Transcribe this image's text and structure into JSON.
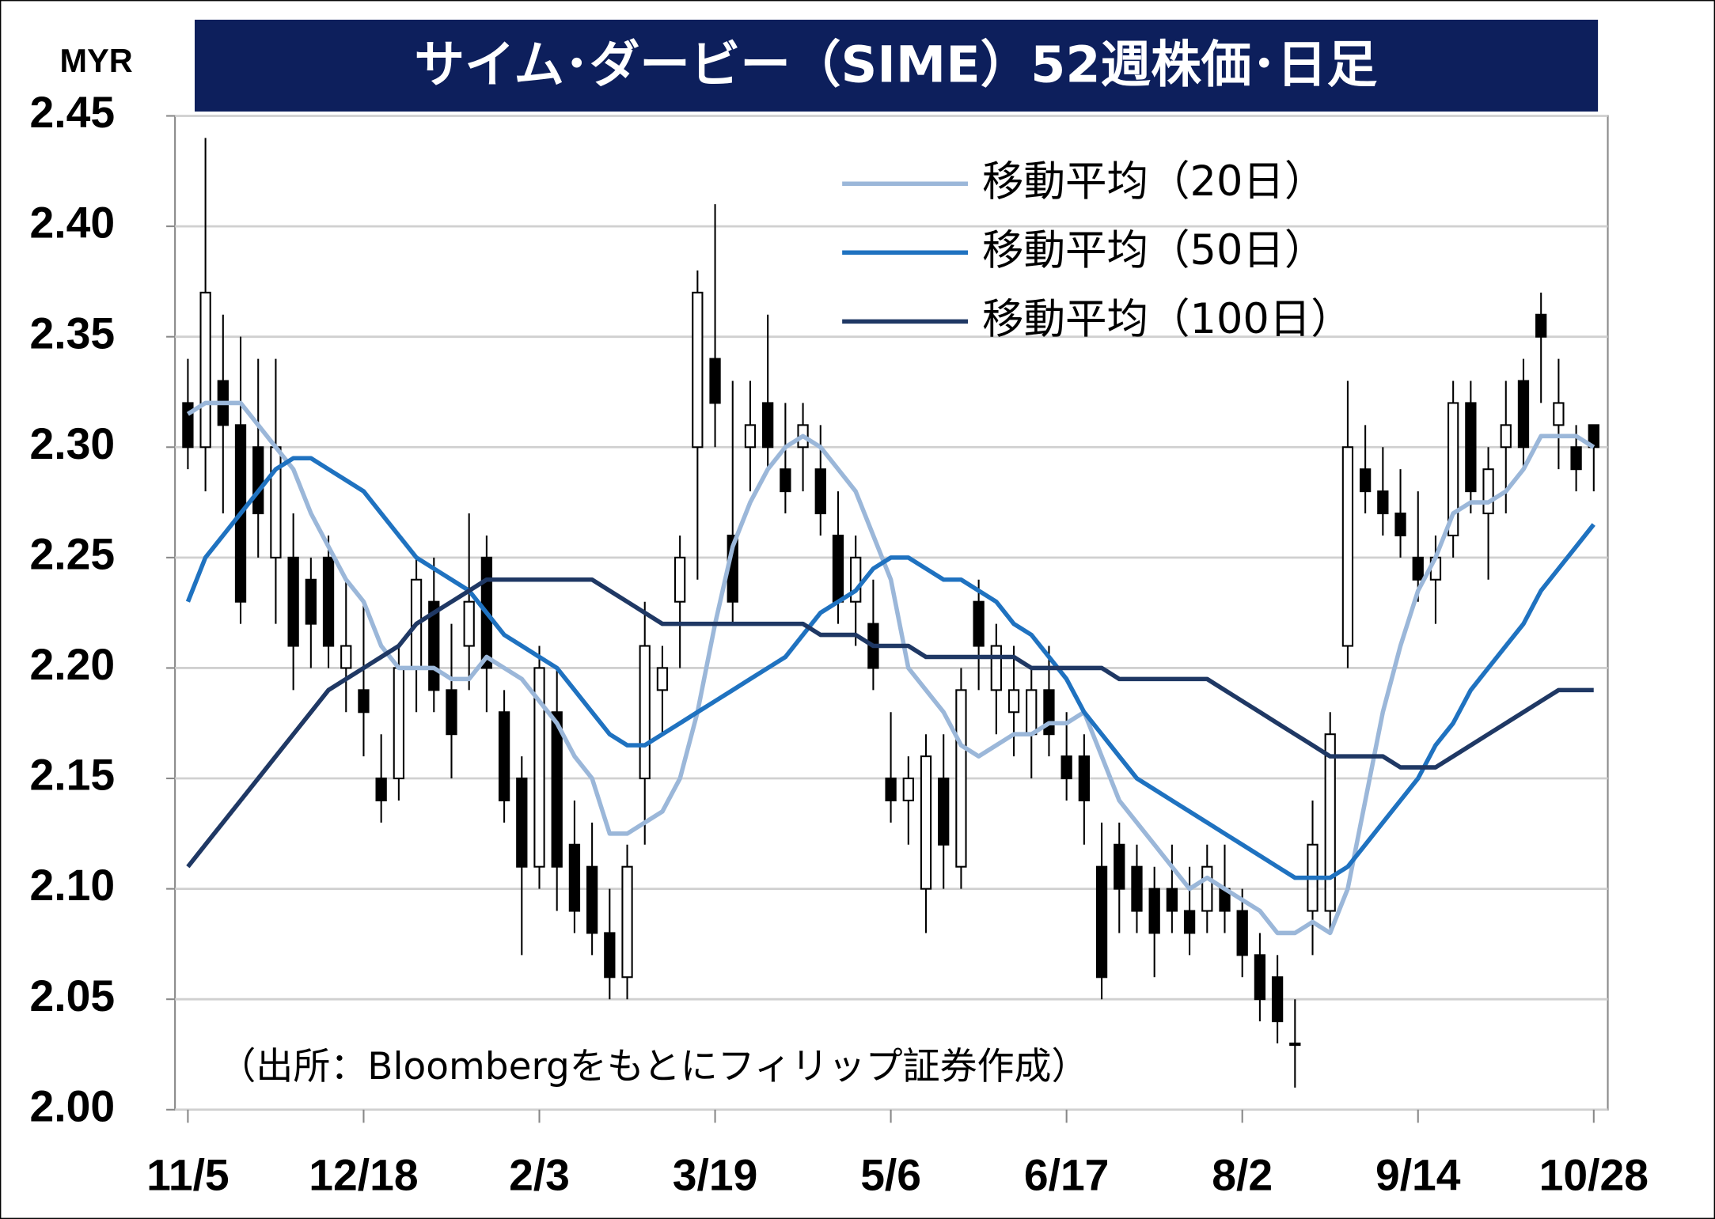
{
  "chart_data": {
    "type": "candlestick",
    "title": "サイム･ダービー（SIME）52週株価･日足",
    "y_unit": "MYR",
    "annotation": "（出所：Bloombergをもとにフィリップ証券作成）",
    "legend": "upper right",
    "grid": true,
    "up_color": "#ffffff",
    "down_color": "#000000",
    "xlim": [
      -2.2,
      242.4
    ],
    "xticks": [
      {
        "value": 0,
        "label": "11/5"
      },
      {
        "value": 30,
        "label": "12/18"
      },
      {
        "value": 60,
        "label": "2/3"
      },
      {
        "value": 90,
        "label": "3/19"
      },
      {
        "value": 120,
        "label": "5/6"
      },
      {
        "value": 150,
        "label": "6/17"
      },
      {
        "value": 180,
        "label": "8/2"
      },
      {
        "value": 210,
        "label": "9/14"
      },
      {
        "value": 240,
        "label": "10/28"
      }
    ],
    "ylim": [
      2,
      2.45
    ],
    "yticks": [
      {
        "value": 2,
        "label": "2.00"
      },
      2.05,
      {
        "value": 2.1,
        "label": "2.10"
      },
      2.15,
      {
        "value": 2.2,
        "label": "2.20"
      },
      2.25,
      {
        "value": 2.3,
        "label": "2.30"
      },
      2.35,
      {
        "value": 2.4,
        "label": "2.40"
      },
      2.45
    ],
    "x": [
      0,
      3,
      6,
      9,
      12,
      15,
      18,
      21,
      24,
      27,
      30,
      33,
      36,
      39,
      42,
      45,
      48,
      51,
      54,
      57,
      60,
      63,
      66,
      69,
      72,
      75,
      78,
      81,
      84,
      87,
      90,
      93,
      96,
      99,
      102,
      105,
      108,
      111,
      114,
      117,
      120,
      123,
      126,
      129,
      132,
      135,
      138,
      141,
      144,
      147,
      150,
      153,
      156,
      159,
      162,
      165,
      168,
      171,
      174,
      177,
      180,
      183,
      186,
      189,
      192,
      195,
      198,
      201,
      204,
      207,
      210,
      213,
      216,
      219,
      222,
      225,
      228,
      231,
      234,
      237,
      240
    ],
    "ohlc": [
      [
        2.32,
        2.34,
        2.29,
        2.3
      ],
      [
        2.3,
        2.44,
        2.28,
        2.37
      ],
      [
        2.33,
        2.36,
        2.27,
        2.31
      ],
      [
        2.31,
        2.35,
        2.22,
        2.23
      ],
      [
        2.3,
        2.34,
        2.25,
        2.27
      ],
      [
        2.25,
        2.34,
        2.22,
        2.3
      ],
      [
        2.25,
        2.27,
        2.19,
        2.21
      ],
      [
        2.24,
        2.25,
        2.2,
        2.22
      ],
      [
        2.25,
        2.26,
        2.2,
        2.21
      ],
      [
        2.2,
        2.24,
        2.18,
        2.21
      ],
      [
        2.19,
        2.23,
        2.16,
        2.18
      ],
      [
        2.15,
        2.17,
        2.13,
        2.14
      ],
      [
        2.15,
        2.21,
        2.14,
        2.2
      ],
      [
        2.2,
        2.25,
        2.18,
        2.24
      ],
      [
        2.23,
        2.25,
        2.18,
        2.19
      ],
      [
        2.19,
        2.22,
        2.15,
        2.17
      ],
      [
        2.21,
        2.27,
        2.19,
        2.23
      ],
      [
        2.25,
        2.26,
        2.18,
        2.2
      ],
      [
        2.18,
        2.19,
        2.13,
        2.14
      ],
      [
        2.15,
        2.16,
        2.07,
        2.11
      ],
      [
        2.11,
        2.21,
        2.1,
        2.2
      ],
      [
        2.18,
        2.2,
        2.09,
        2.11
      ],
      [
        2.12,
        2.14,
        2.08,
        2.09
      ],
      [
        2.11,
        2.13,
        2.07,
        2.08
      ],
      [
        2.08,
        2.1,
        2.05,
        2.06
      ],
      [
        2.06,
        2.12,
        2.05,
        2.11
      ],
      [
        2.15,
        2.23,
        2.12,
        2.21
      ],
      [
        2.19,
        2.21,
        2.17,
        2.2
      ],
      [
        2.23,
        2.26,
        2.2,
        2.25
      ],
      [
        2.3,
        2.38,
        2.24,
        2.37
      ],
      [
        2.34,
        2.41,
        2.3,
        2.32
      ],
      [
        2.26,
        2.33,
        2.22,
        2.23
      ],
      [
        2.3,
        2.33,
        2.28,
        2.31
      ],
      [
        2.32,
        2.36,
        2.29,
        2.3
      ],
      [
        2.29,
        2.32,
        2.27,
        2.28
      ],
      [
        2.3,
        2.32,
        2.28,
        2.31
      ],
      [
        2.29,
        2.31,
        2.26,
        2.27
      ],
      [
        2.26,
        2.28,
        2.22,
        2.23
      ],
      [
        2.23,
        2.26,
        2.21,
        2.25
      ],
      [
        2.22,
        2.24,
        2.19,
        2.2
      ],
      [
        2.15,
        2.18,
        2.13,
        2.14
      ],
      [
        2.14,
        2.16,
        2.12,
        2.15
      ],
      [
        2.1,
        2.17,
        2.08,
        2.16
      ],
      [
        2.15,
        2.17,
        2.1,
        2.12
      ],
      [
        2.11,
        2.2,
        2.1,
        2.19
      ],
      [
        2.23,
        2.24,
        2.19,
        2.21
      ],
      [
        2.19,
        2.22,
        2.17,
        2.21
      ],
      [
        2.18,
        2.21,
        2.16,
        2.19
      ],
      [
        2.17,
        2.2,
        2.15,
        2.19
      ],
      [
        2.19,
        2.21,
        2.16,
        2.17
      ],
      [
        2.16,
        2.18,
        2.14,
        2.15
      ],
      [
        2.16,
        2.17,
        2.12,
        2.14
      ],
      [
        2.11,
        2.13,
        2.05,
        2.06
      ],
      [
        2.12,
        2.13,
        2.08,
        2.1
      ],
      [
        2.11,
        2.12,
        2.08,
        2.09
      ],
      [
        2.1,
        2.11,
        2.06,
        2.08
      ],
      [
        2.1,
        2.12,
        2.08,
        2.09
      ],
      [
        2.09,
        2.11,
        2.07,
        2.08
      ],
      [
        2.09,
        2.12,
        2.08,
        2.11
      ],
      [
        2.1,
        2.12,
        2.08,
        2.09
      ],
      [
        2.09,
        2.1,
        2.06,
        2.07
      ],
      [
        2.07,
        2.08,
        2.04,
        2.05
      ],
      [
        2.06,
        2.07,
        2.03,
        2.04
      ],
      [
        2.03,
        2.05,
        2.01,
        2.03
      ],
      [
        2.09,
        2.14,
        2.07,
        2.12
      ],
      [
        2.09,
        2.18,
        2.08,
        2.17
      ],
      [
        2.21,
        2.33,
        2.2,
        2.3
      ],
      [
        2.29,
        2.31,
        2.27,
        2.28
      ],
      [
        2.28,
        2.3,
        2.26,
        2.27
      ],
      [
        2.27,
        2.29,
        2.25,
        2.26
      ],
      [
        2.25,
        2.28,
        2.23,
        2.24
      ],
      [
        2.24,
        2.26,
        2.22,
        2.25
      ],
      [
        2.26,
        2.33,
        2.25,
        2.32
      ],
      [
        2.32,
        2.33,
        2.27,
        2.28
      ],
      [
        2.27,
        2.3,
        2.24,
        2.29
      ],
      [
        2.3,
        2.33,
        2.27,
        2.31
      ],
      [
        2.33,
        2.34,
        2.29,
        2.3
      ],
      [
        2.36,
        2.37,
        2.32,
        2.35
      ],
      [
        2.31,
        2.34,
        2.29,
        2.32
      ],
      [
        2.3,
        2.31,
        2.28,
        2.29
      ],
      [
        2.31,
        2.31,
        2.28,
        2.3
      ]
    ],
    "series": [
      {
        "name": "移動平均（20日）",
        "color": "#9bb7d9",
        "values": [
          2.315,
          2.32,
          2.32,
          2.32,
          2.31,
          2.3,
          2.29,
          2.27,
          2.255,
          2.24,
          2.23,
          2.21,
          2.2,
          2.2,
          2.2,
          2.195,
          2.195,
          2.205,
          2.2,
          2.195,
          2.185,
          2.175,
          2.16,
          2.15,
          2.125,
          2.125,
          2.13,
          2.135,
          2.15,
          2.18,
          2.22,
          2.255,
          2.275,
          2.29,
          2.3,
          2.305,
          2.3,
          2.29,
          2.28,
          2.26,
          2.24,
          2.2,
          2.19,
          2.18,
          2.165,
          2.16,
          2.165,
          2.17,
          2.17,
          2.175,
          2.175,
          2.18,
          2.16,
          2.14,
          2.13,
          2.12,
          2.11,
          2.1,
          2.105,
          2.1,
          2.095,
          2.09,
          2.08,
          2.08,
          2.085,
          2.08,
          2.1,
          2.14,
          2.18,
          2.21,
          2.235,
          2.25,
          2.27,
          2.275,
          2.275,
          2.28,
          2.29,
          2.305,
          2.305,
          2.305,
          2.3
        ]
      },
      {
        "name": "移動平均（50日）",
        "color": "#1f72c0",
        "values": [
          2.23,
          2.25,
          2.26,
          2.27,
          2.28,
          2.29,
          2.295,
          2.295,
          2.29,
          2.285,
          2.28,
          2.27,
          2.26,
          2.25,
          2.245,
          2.24,
          2.235,
          2.225,
          2.215,
          2.21,
          2.205,
          2.2,
          2.19,
          2.18,
          2.17,
          2.165,
          2.165,
          2.17,
          2.175,
          2.18,
          2.185,
          2.19,
          2.195,
          2.2,
          2.205,
          2.215,
          2.225,
          2.23,
          2.235,
          2.245,
          2.25,
          2.25,
          2.245,
          2.24,
          2.24,
          2.235,
          2.23,
          2.22,
          2.215,
          2.205,
          2.195,
          2.18,
          2.17,
          2.16,
          2.15,
          2.145,
          2.14,
          2.135,
          2.13,
          2.125,
          2.12,
          2.115,
          2.11,
          2.105,
          2.105,
          2.105,
          2.11,
          2.12,
          2.13,
          2.14,
          2.15,
          2.165,
          2.175,
          2.19,
          2.2,
          2.21,
          2.22,
          2.235,
          2.245,
          2.255,
          2.265
        ]
      },
      {
        "name": "移動平均（100日）",
        "color": "#1f3864",
        "values": [
          2.11,
          2.12,
          2.13,
          2.14,
          2.15,
          2.16,
          2.17,
          2.18,
          2.19,
          2.195,
          2.2,
          2.205,
          2.21,
          2.22,
          2.225,
          2.23,
          2.235,
          2.24,
          2.24,
          2.24,
          2.24,
          2.24,
          2.24,
          2.24,
          2.235,
          2.23,
          2.225,
          2.22,
          2.22,
          2.22,
          2.22,
          2.22,
          2.22,
          2.22,
          2.22,
          2.22,
          2.215,
          2.215,
          2.215,
          2.21,
          2.21,
          2.21,
          2.205,
          2.205,
          2.205,
          2.205,
          2.205,
          2.205,
          2.2,
          2.2,
          2.2,
          2.2,
          2.2,
          2.195,
          2.195,
          2.195,
          2.195,
          2.195,
          2.195,
          2.19,
          2.185,
          2.18,
          2.175,
          2.17,
          2.165,
          2.16,
          2.16,
          2.16,
          2.16,
          2.155,
          2.155,
          2.155,
          2.16,
          2.165,
          2.17,
          2.175,
          2.18,
          2.185,
          2.19,
          2.19,
          2.19
        ]
      }
    ]
  }
}
